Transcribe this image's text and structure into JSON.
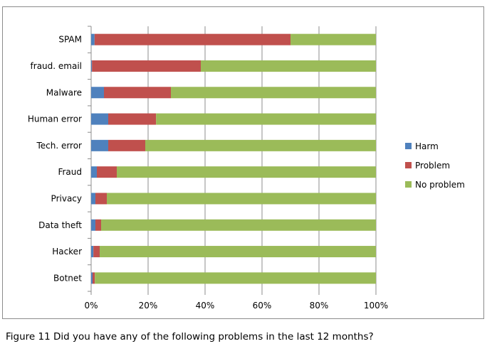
{
  "caption": "Figure 11 Did you have any of the following problems in the last 12 months?",
  "chart_data": {
    "type": "bar",
    "orientation": "horizontal",
    "stacked": "percent",
    "categories": [
      "SPAM",
      "fraud. email",
      "Malware",
      "Human error",
      "Tech. error",
      "Fraud",
      "Privacy",
      "Data theft",
      "Hacker",
      "Botnet"
    ],
    "series": [
      {
        "name": "Harm",
        "color": "#4f81bd",
        "values": [
          1.2,
          0.3,
          4.5,
          6.0,
          6.0,
          2.0,
          1.5,
          1.5,
          0.8,
          0.5
        ]
      },
      {
        "name": "Problem",
        "color": "#c0504d",
        "values": [
          68.8,
          38.2,
          23.5,
          16.8,
          13.0,
          7.0,
          4.0,
          2.0,
          2.2,
          0.8
        ]
      },
      {
        "name": "No problem",
        "color": "#9bbb59",
        "values": [
          30.0,
          61.5,
          72.0,
          77.2,
          81.0,
          91.0,
          94.5,
          96.5,
          97.0,
          98.7
        ]
      }
    ],
    "xlim": [
      0,
      100
    ],
    "xticks": [
      "0%",
      "20%",
      "40%",
      "60%",
      "80%",
      "100%"
    ],
    "xlabel": "",
    "ylabel": "",
    "title": "",
    "grid": "vertical major",
    "legend": "right"
  }
}
